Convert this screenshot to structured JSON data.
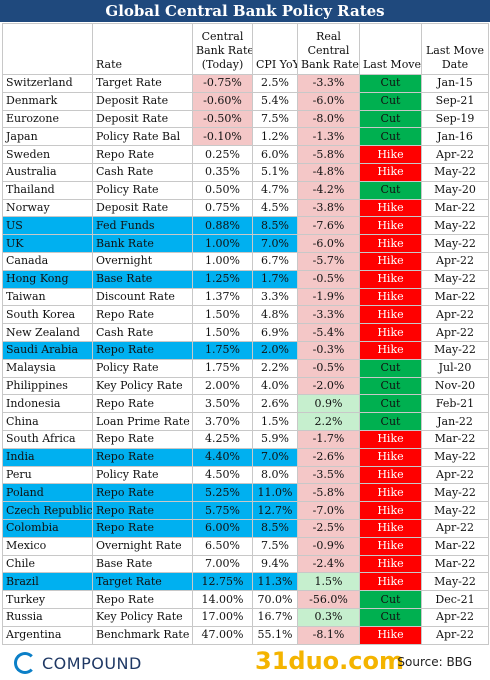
{
  "title": "Global Central Bank Policy Rates",
  "headers": {
    "rate": "Rate",
    "policy_rate": [
      "Central",
      "Bank Rate",
      "(Today)"
    ],
    "cpi": "CPI YoY",
    "real_rate": [
      "Real",
      "Central",
      "Bank Rate"
    ],
    "last_move": "Last Move",
    "last_move_date": [
      "Last Move",
      "Date"
    ]
  },
  "colors": {
    "title_bg": "#1f497d",
    "highlight": "#00b0f0",
    "negative": "#f4c7c7",
    "positive": "#c6efce",
    "cut": "#00b050",
    "hike": "#ff0000"
  },
  "rows": [
    {
      "country": "Switzerland",
      "rate": "Target Rate",
      "policy": "-0.75%",
      "cpi": "2.5%",
      "real": "-3.3%",
      "move": "Cut",
      "date": "Jan-15",
      "hl": false
    },
    {
      "country": "Denmark",
      "rate": "Deposit Rate",
      "policy": "-0.60%",
      "cpi": "5.4%",
      "real": "-6.0%",
      "move": "Cut",
      "date": "Sep-21",
      "hl": false
    },
    {
      "country": "Eurozone",
      "rate": "Deposit Rate",
      "policy": "-0.50%",
      "cpi": "7.5%",
      "real": "-8.0%",
      "move": "Cut",
      "date": "Sep-19",
      "hl": false
    },
    {
      "country": "Japan",
      "rate": "Policy Rate Bal",
      "policy": "-0.10%",
      "cpi": "1.2%",
      "real": "-1.3%",
      "move": "Cut",
      "date": "Jan-16",
      "hl": false
    },
    {
      "country": "Sweden",
      "rate": "Repo Rate",
      "policy": "0.25%",
      "cpi": "6.0%",
      "real": "-5.8%",
      "move": "Hike",
      "date": "Apr-22",
      "hl": false
    },
    {
      "country": "Australia",
      "rate": "Cash Rate",
      "policy": "0.35%",
      "cpi": "5.1%",
      "real": "-4.8%",
      "move": "Hike",
      "date": "May-22",
      "hl": false
    },
    {
      "country": "Thailand",
      "rate": "Policy Rate",
      "policy": "0.50%",
      "cpi": "4.7%",
      "real": "-4.2%",
      "move": "Cut",
      "date": "May-20",
      "hl": false
    },
    {
      "country": "Norway",
      "rate": "Deposit Rate",
      "policy": "0.75%",
      "cpi": "4.5%",
      "real": "-3.8%",
      "move": "Hike",
      "date": "Mar-22",
      "hl": false
    },
    {
      "country": "US",
      "rate": "Fed Funds",
      "policy": "0.88%",
      "cpi": "8.5%",
      "real": "-7.6%",
      "move": "Hike",
      "date": "May-22",
      "hl": true
    },
    {
      "country": "UK",
      "rate": "Bank Rate",
      "policy": "1.00%",
      "cpi": "7.0%",
      "real": "-6.0%",
      "move": "Hike",
      "date": "May-22",
      "hl": true
    },
    {
      "country": "Canada",
      "rate": "Overnight",
      "policy": "1.00%",
      "cpi": "6.7%",
      "real": "-5.7%",
      "move": "Hike",
      "date": "Apr-22",
      "hl": false
    },
    {
      "country": "Hong Kong",
      "rate": "Base Rate",
      "policy": "1.25%",
      "cpi": "1.7%",
      "real": "-0.5%",
      "move": "Hike",
      "date": "May-22",
      "hl": true
    },
    {
      "country": "Taiwan",
      "rate": "Discount Rate",
      "policy": "1.37%",
      "cpi": "3.3%",
      "real": "-1.9%",
      "move": "Hike",
      "date": "Mar-22",
      "hl": false
    },
    {
      "country": "South Korea",
      "rate": "Repo Rate",
      "policy": "1.50%",
      "cpi": "4.8%",
      "real": "-3.3%",
      "move": "Hike",
      "date": "Apr-22",
      "hl": false
    },
    {
      "country": "New Zealand",
      "rate": "Cash Rate",
      "policy": "1.50%",
      "cpi": "6.9%",
      "real": "-5.4%",
      "move": "Hike",
      "date": "Apr-22",
      "hl": false
    },
    {
      "country": "Saudi Arabia",
      "rate": "Repo Rate",
      "policy": "1.75%",
      "cpi": "2.0%",
      "real": "-0.3%",
      "move": "Hike",
      "date": "May-22",
      "hl": true
    },
    {
      "country": "Malaysia",
      "rate": "Policy Rate",
      "policy": "1.75%",
      "cpi": "2.2%",
      "real": "-0.5%",
      "move": "Cut",
      "date": "Jul-20",
      "hl": false
    },
    {
      "country": "Philippines",
      "rate": "Key Policy Rate",
      "policy": "2.00%",
      "cpi": "4.0%",
      "real": "-2.0%",
      "move": "Cut",
      "date": "Nov-20",
      "hl": false
    },
    {
      "country": "Indonesia",
      "rate": "Repo Rate",
      "policy": "3.50%",
      "cpi": "2.6%",
      "real": "0.9%",
      "move": "Cut",
      "date": "Feb-21",
      "hl": false
    },
    {
      "country": "China",
      "rate": "Loan Prime Rate",
      "policy": "3.70%",
      "cpi": "1.5%",
      "real": "2.2%",
      "move": "Cut",
      "date": "Jan-22",
      "hl": false
    },
    {
      "country": "South Africa",
      "rate": "Repo Rate",
      "policy": "4.25%",
      "cpi": "5.9%",
      "real": "-1.7%",
      "move": "Hike",
      "date": "Mar-22",
      "hl": false
    },
    {
      "country": "India",
      "rate": "Repo Rate",
      "policy": "4.40%",
      "cpi": "7.0%",
      "real": "-2.6%",
      "move": "Hike",
      "date": "May-22",
      "hl": true
    },
    {
      "country": "Peru",
      "rate": "Policy Rate",
      "policy": "4.50%",
      "cpi": "8.0%",
      "real": "-3.5%",
      "move": "Hike",
      "date": "Apr-22",
      "hl": false
    },
    {
      "country": "Poland",
      "rate": "Repo Rate",
      "policy": "5.25%",
      "cpi": "11.0%",
      "real": "-5.8%",
      "move": "Hike",
      "date": "May-22",
      "hl": true
    },
    {
      "country": "Czech Republic",
      "rate": "Repo Rate",
      "policy": "5.75%",
      "cpi": "12.7%",
      "real": "-7.0%",
      "move": "Hike",
      "date": "May-22",
      "hl": true
    },
    {
      "country": "Colombia",
      "rate": "Repo Rate",
      "policy": "6.00%",
      "cpi": "8.5%",
      "real": "-2.5%",
      "move": "Hike",
      "date": "Apr-22",
      "hl": true
    },
    {
      "country": "Mexico",
      "rate": "Overnight Rate",
      "policy": "6.50%",
      "cpi": "7.5%",
      "real": "-0.9%",
      "move": "Hike",
      "date": "Mar-22",
      "hl": false
    },
    {
      "country": "Chile",
      "rate": "Base Rate",
      "policy": "7.00%",
      "cpi": "9.4%",
      "real": "-2.4%",
      "move": "Hike",
      "date": "Mar-22",
      "hl": false
    },
    {
      "country": "Brazil",
      "rate": "Target Rate",
      "policy": "12.75%",
      "cpi": "11.3%",
      "real": "1.5%",
      "move": "Hike",
      "date": "May-22",
      "hl": true
    },
    {
      "country": "Turkey",
      "rate": "Repo Rate",
      "policy": "14.00%",
      "cpi": "70.0%",
      "real": "-56.0%",
      "move": "Cut",
      "date": "Dec-21",
      "hl": false
    },
    {
      "country": "Russia",
      "rate": "Key Policy Rate",
      "policy": "17.00%",
      "cpi": "16.7%",
      "real": "0.3%",
      "move": "Cut",
      "date": "Apr-22",
      "hl": false
    },
    {
      "country": "Argentina",
      "rate": "Benchmark Rate",
      "policy": "47.00%",
      "cpi": "55.1%",
      "real": "-8.1%",
      "move": "Hike",
      "date": "Apr-22",
      "hl": false
    }
  ],
  "footer": {
    "logo_text": "COMPOUND",
    "watermark": "31duo.com",
    "source": "Source: BBG"
  }
}
